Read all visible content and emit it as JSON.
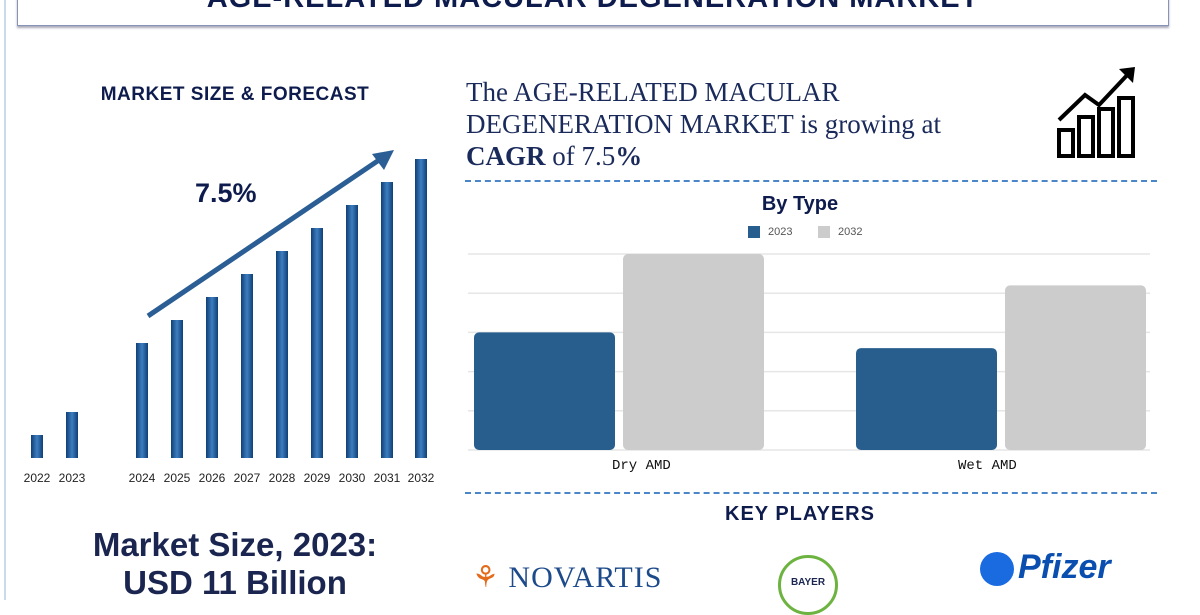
{
  "title": "AGE-RELATED MACULAR DEGENERATION MARKET",
  "left": {
    "heading": "MARKET SIZE & FORECAST",
    "cagr_label": "7.5%",
    "market_size_line1": "Market Size, 2023:",
    "market_size_line2": "USD 11 Billion"
  },
  "headline": {
    "part1": "The AGE-RELATED MACULAR DEGENERATION MARKET is growing at",
    "cagr_word": "CAGR",
    "of": "of 7.5",
    "pct": "%"
  },
  "key_players": {
    "heading": "KEY PLAYERS",
    "logos": [
      "NOVARTIS",
      "BAYER",
      "Pfizer"
    ]
  },
  "colors": {
    "navy": "#0e1b4d",
    "bar_blue": "#1f5f9a",
    "series_2023": "#285e8e",
    "series_2032": "#cccccc",
    "dash": "#4a86c8"
  },
  "chart_data": [
    {
      "type": "bar",
      "title": "",
      "categories": [
        "2022",
        "2023",
        "2024",
        "2025",
        "2026",
        "2027",
        "2028",
        "2029",
        "2030",
        "2031",
        "2032"
      ],
      "values": [
        1,
        2,
        5,
        6,
        7,
        8,
        9,
        10,
        11,
        12,
        13
      ],
      "note_label": "7.5%",
      "trend_arrow": true,
      "grid": false
    },
    {
      "type": "bar",
      "title": "By Type",
      "categories": [
        "Dry AMD",
        "Wet AMD"
      ],
      "series": [
        {
          "name": "2023",
          "values": [
            3.0,
            2.6
          ]
        },
        {
          "name": "2032",
          "values": [
            5.0,
            4.2
          ]
        }
      ],
      "ylim": [
        0,
        5
      ],
      "grid": true,
      "legend": "top"
    }
  ]
}
